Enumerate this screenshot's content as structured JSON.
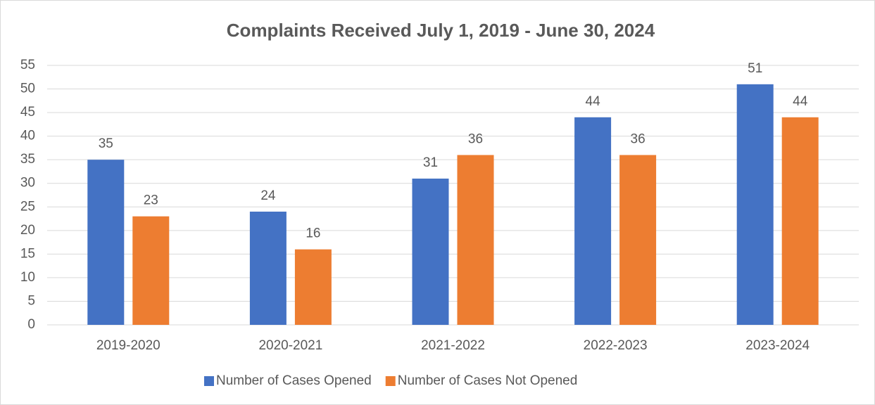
{
  "chart_data": {
    "type": "bar",
    "title": "Complaints Received July 1, 2019 - June 30, 2024",
    "categories": [
      "2019-2020",
      "2020-2021",
      "2021-2022",
      "2022-2023",
      "2023-2024"
    ],
    "series": [
      {
        "name": "Number of Cases Opened",
        "color": "#4472c4",
        "values": [
          35,
          24,
          31,
          44,
          51
        ]
      },
      {
        "name": "Number of Cases Not Opened",
        "color": "#ed7d31",
        "values": [
          23,
          16,
          36,
          36,
          44
        ]
      }
    ],
    "ylim": [
      0,
      55
    ],
    "yticks": [
      0,
      5,
      10,
      15,
      20,
      25,
      30,
      35,
      40,
      45,
      50,
      55
    ],
    "grid": true,
    "legend": "bottom"
  }
}
